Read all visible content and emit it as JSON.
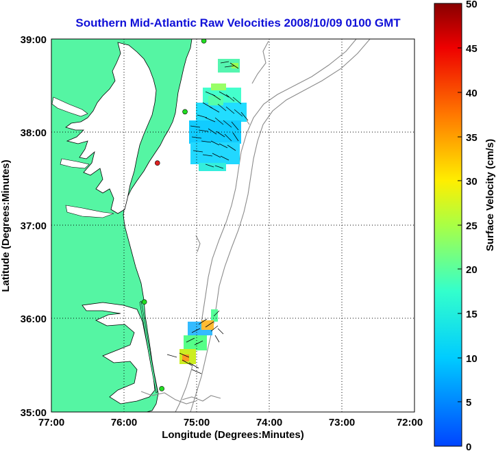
{
  "title": "Southern Mid-Atlantic Raw Velocities 2008/10/09 0100 GMT",
  "xlabel": "Longitude (Degrees:Minutes)",
  "ylabel": "Latitude (Degrees:Minutes)",
  "x_ticks": [
    "77:00",
    "76:00",
    "75:00",
    "74:00",
    "73:00",
    "72:00"
  ],
  "y_ticks": [
    "39:00",
    "38:00",
    "37:00",
    "36:00",
    "35:00"
  ],
  "colorbar": {
    "label": "Surface Velocity (cm/s)",
    "ticks": [
      "50",
      "45",
      "40",
      "35",
      "30",
      "25",
      "20",
      "15",
      "10",
      "5",
      "0"
    ],
    "range": [
      0,
      50
    ]
  },
  "colors": {
    "land": "#55f5a3",
    "water": "#ffffff",
    "grid": "#000000",
    "bathymetry": "#8a8a8a",
    "title": "#1010d8",
    "station_active": "#22dd22",
    "station_inactive": "#dd2222"
  },
  "extent": {
    "lon": [
      -77,
      -72
    ],
    "lat": [
      35,
      39
    ]
  },
  "stations": [
    {
      "lon": -74.9,
      "lat": 38.98,
      "status": "active"
    },
    {
      "lon": -75.16,
      "lat": 38.22,
      "status": "active"
    },
    {
      "lon": -75.54,
      "lat": 37.67,
      "status": "inactive"
    },
    {
      "lon": -75.72,
      "lat": 36.18,
      "status": "active"
    },
    {
      "lon": -75.48,
      "lat": 35.25,
      "status": "active"
    }
  ]
}
